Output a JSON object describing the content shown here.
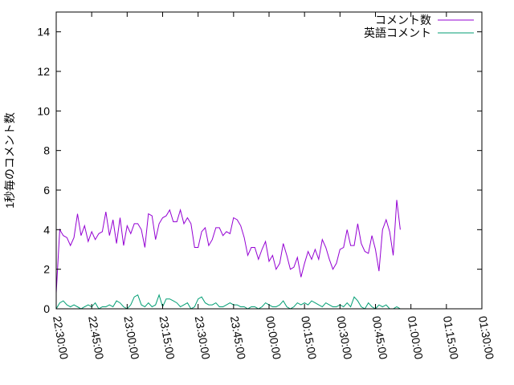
{
  "chart_data": {
    "type": "line",
    "title": "",
    "xlabel": "",
    "ylabel": "1秒毎のコメント数",
    "xlim": [
      "22:30:00",
      "01:30:00"
    ],
    "ylim": [
      0,
      15
    ],
    "y_ticks": [
      0,
      2,
      4,
      6,
      8,
      10,
      12,
      14
    ],
    "x_ticks": [
      "22:30:00",
      "22:45:00",
      "23:00:00",
      "23:15:00",
      "23:30:00",
      "23:45:00",
      "00:00:00",
      "00:15:00",
      "00:30:00",
      "00:45:00",
      "01:00:00",
      "01:15:00",
      "01:30:00"
    ],
    "grid": false,
    "legend_position": "top-right",
    "sample_interval": "00:01:30",
    "series": [
      {
        "name": "コメント数",
        "color": "#9400d3",
        "values": [
          0.8,
          4.0,
          3.7,
          3.6,
          3.2,
          3.6,
          4.8,
          3.7,
          4.2,
          3.4,
          3.9,
          3.5,
          3.8,
          3.9,
          4.9,
          3.7,
          4.5,
          3.3,
          4.6,
          3.2,
          4.2,
          3.8,
          4.3,
          4.3,
          4.0,
          3.1,
          4.8,
          4.7,
          3.5,
          4.3,
          4.6,
          4.7,
          5.0,
          4.4,
          4.4,
          5.0,
          4.3,
          4.6,
          4.3,
          3.1,
          3.1,
          3.9,
          4.1,
          3.2,
          3.5,
          4.1,
          4.1,
          3.7,
          3.9,
          3.8,
          4.6,
          4.5,
          4.2,
          3.6,
          2.7,
          3.1,
          3.1,
          2.5,
          3.0,
          3.4,
          2.4,
          2.7,
          2.0,
          2.3,
          3.3,
          2.7,
          2.0,
          2.1,
          2.6,
          1.6,
          2.3,
          2.9,
          2.5,
          3.0,
          2.5,
          3.5,
          3.1,
          2.5,
          2.0,
          2.3,
          3.0,
          3.1,
          4.0,
          3.2,
          3.2,
          4.3,
          3.3,
          2.9,
          2.8,
          3.7,
          3.0,
          1.9,
          4.0,
          4.5,
          3.9,
          2.7,
          5.5,
          4.0
        ]
      },
      {
        "name": "英語コメント",
        "color": "#009e73",
        "values": [
          0.0,
          0.3,
          0.4,
          0.2,
          0.1,
          0.2,
          0.1,
          0.0,
          0.1,
          0.2,
          0.1,
          0.3,
          0.0,
          0.1,
          0.1,
          0.2,
          0.1,
          0.4,
          0.3,
          0.1,
          0.0,
          0.2,
          0.6,
          0.7,
          0.2,
          0.1,
          0.3,
          0.1,
          0.2,
          0.7,
          0.1,
          0.5,
          0.5,
          0.4,
          0.3,
          0.1,
          0.2,
          0.3,
          0.0,
          0.1,
          0.5,
          0.6,
          0.3,
          0.2,
          0.2,
          0.3,
          0.1,
          0.1,
          0.2,
          0.3,
          0.2,
          0.2,
          0.1,
          0.1,
          0.0,
          0.1,
          0.1,
          0.0,
          0.1,
          0.3,
          0.2,
          0.1,
          0.1,
          0.2,
          0.4,
          0.1,
          0.0,
          0.1,
          0.3,
          0.2,
          0.3,
          0.2,
          0.4,
          0.3,
          0.2,
          0.1,
          0.3,
          0.2,
          0.1,
          0.1,
          0.2,
          0.1,
          0.3,
          0.1,
          0.6,
          0.4,
          0.1,
          0.0,
          0.3,
          0.1,
          0.0,
          0.2,
          0.1,
          0.2,
          0.0,
          0.0,
          0.1,
          0.0
        ]
      }
    ]
  }
}
